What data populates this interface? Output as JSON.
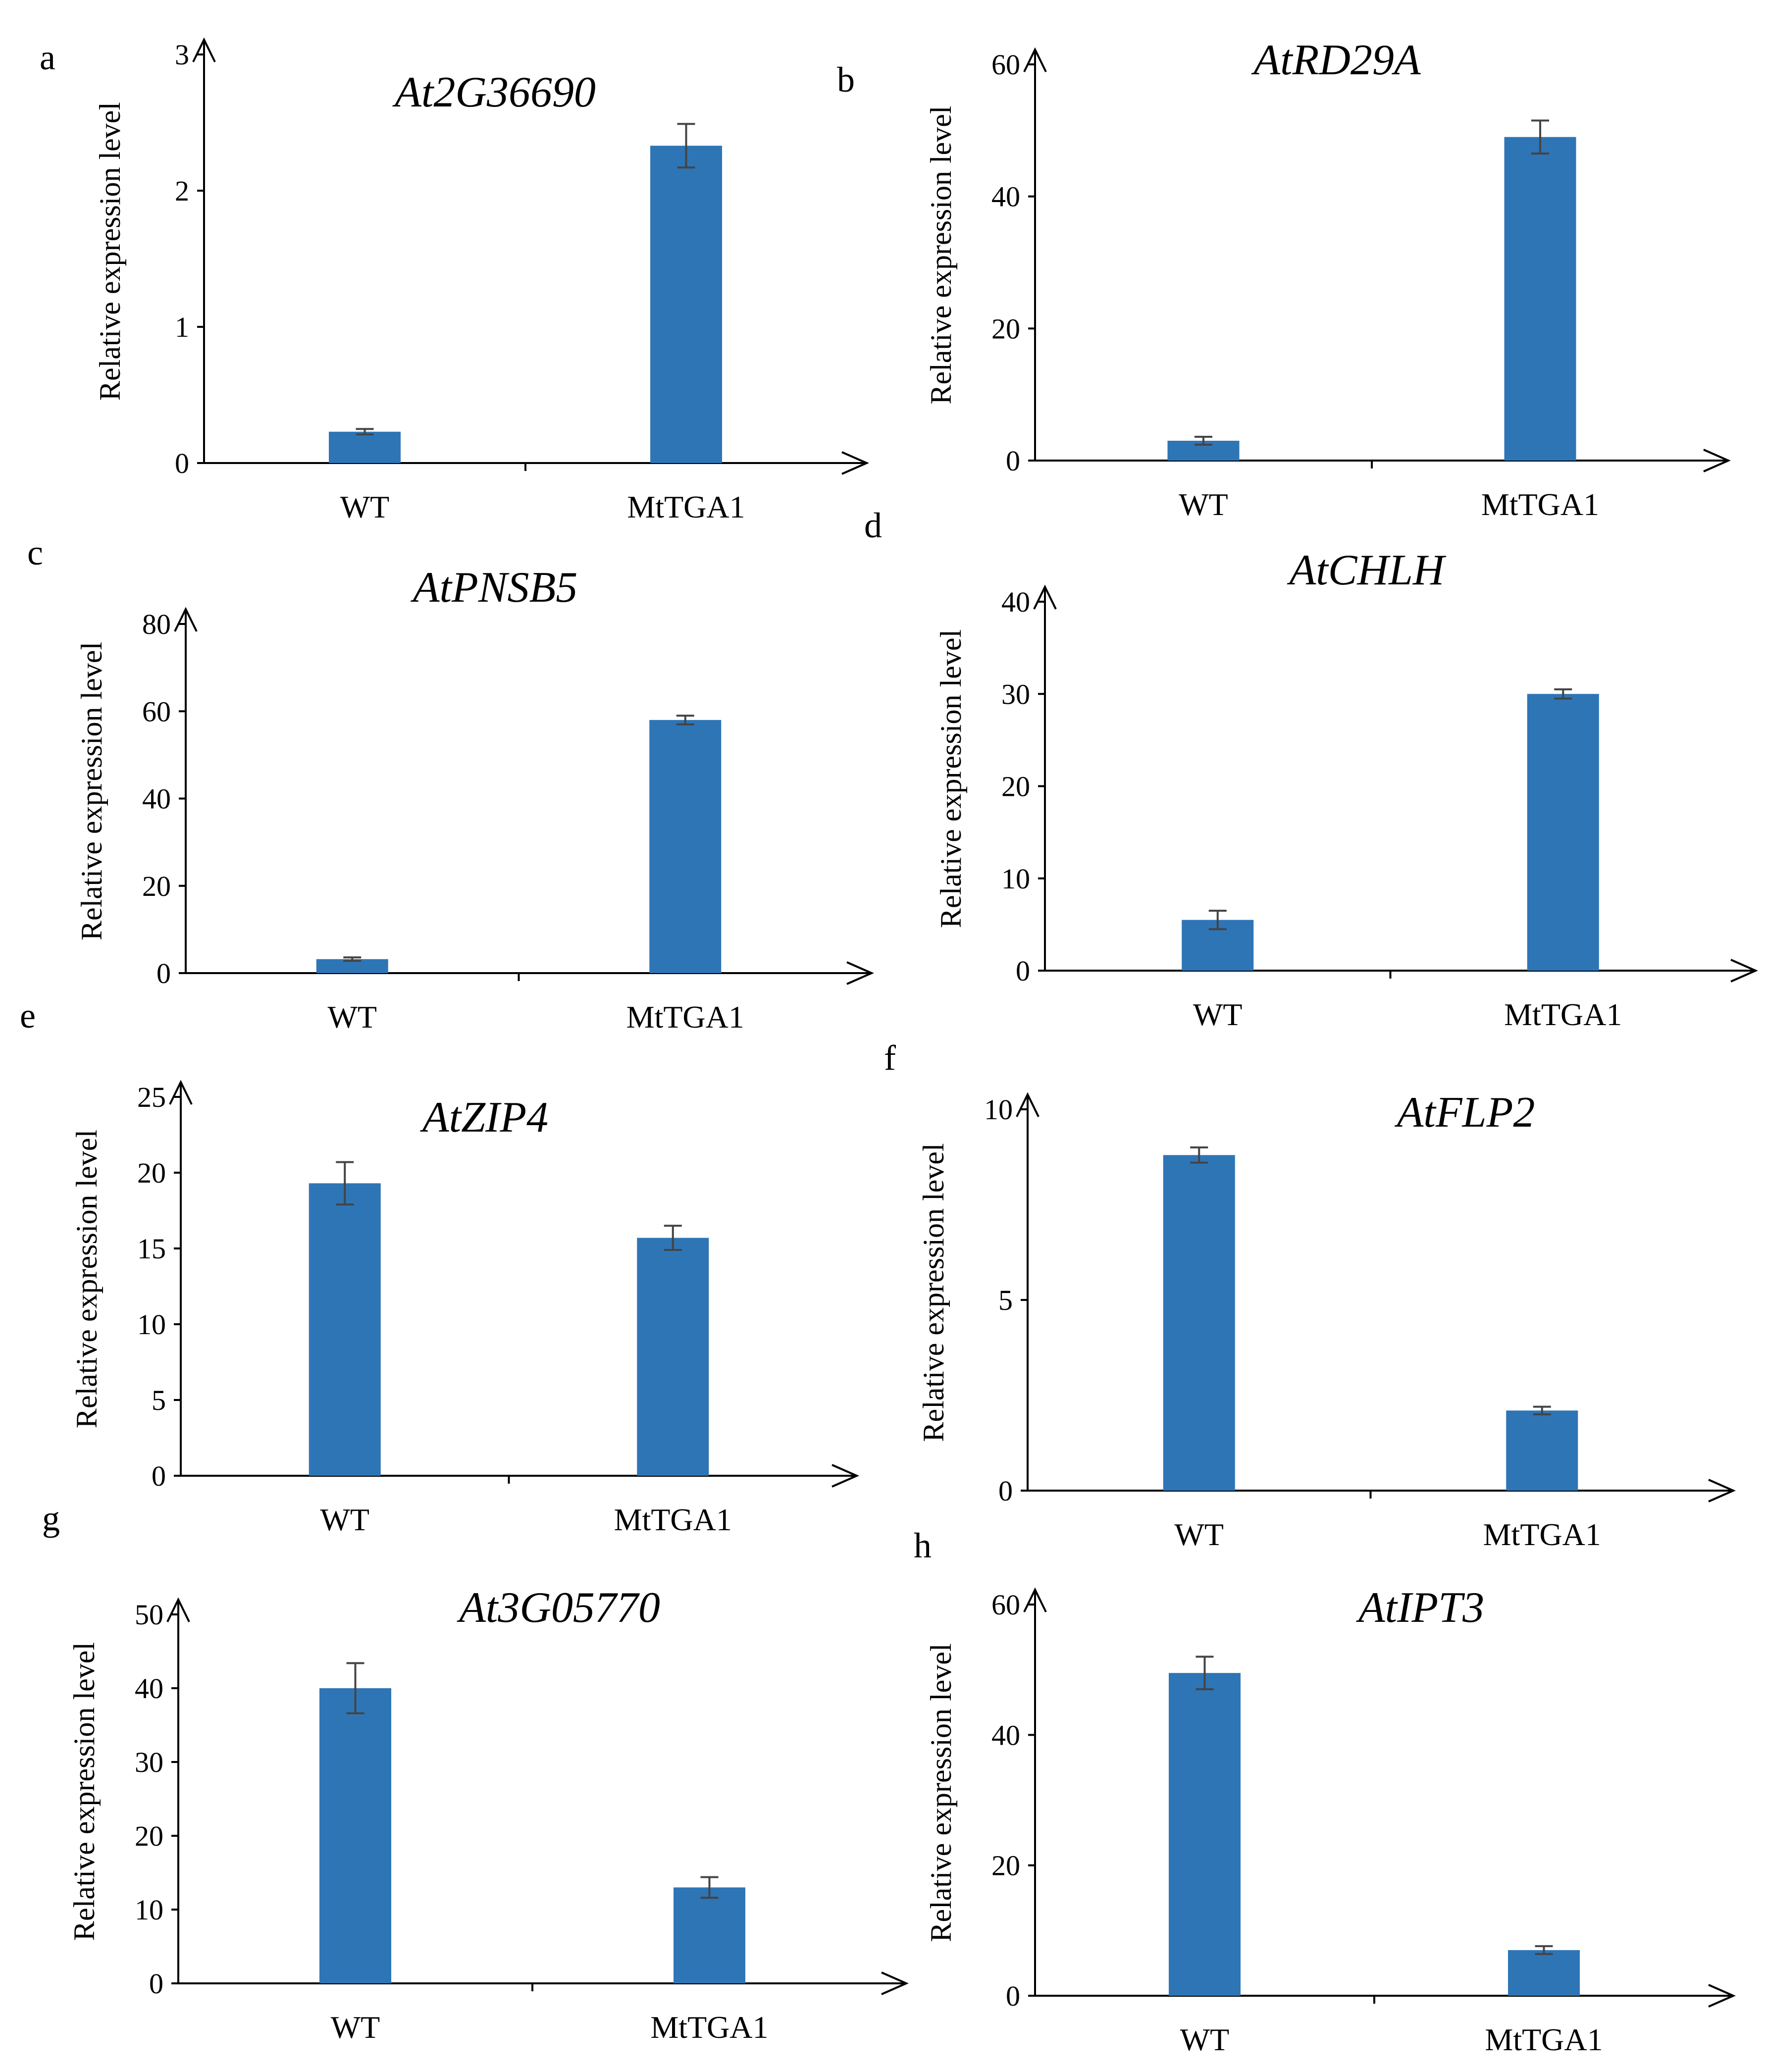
{
  "chart_data": [
    {
      "panel": "a",
      "type": "bar",
      "title": "At2G36690",
      "ylabel": "Relative expression level",
      "categories": [
        "WT",
        "MtTGA1"
      ],
      "values": [
        0.23,
        2.33
      ],
      "errors": [
        0.02,
        0.16
      ],
      "ylim": [
        0,
        3
      ],
      "yticks": [
        0,
        1,
        2,
        3
      ]
    },
    {
      "panel": "b",
      "type": "bar",
      "title": "AtRD29A",
      "ylabel": "Relative expression level",
      "categories": [
        "WT",
        "MtTGA1"
      ],
      "values": [
        3,
        49
      ],
      "errors": [
        0.6,
        2.5
      ],
      "ylim": [
        0,
        60
      ],
      "yticks": [
        0,
        20,
        40,
        60
      ]
    },
    {
      "panel": "c",
      "type": "bar",
      "title": "AtPNSB5",
      "ylabel": "Relative expression level",
      "categories": [
        "WT",
        "MtTGA1"
      ],
      "values": [
        3.2,
        58
      ],
      "errors": [
        0.4,
        1.0
      ],
      "ylim": [
        0,
        80
      ],
      "yticks": [
        0,
        20,
        40,
        60,
        80
      ]
    },
    {
      "panel": "d",
      "type": "bar",
      "title": "AtCHLH",
      "ylabel": "Relative expression level",
      "categories": [
        "WT",
        "MtTGA1"
      ],
      "values": [
        5.5,
        30
      ],
      "errors": [
        1.0,
        0.5
      ],
      "ylim": [
        0,
        40
      ],
      "yticks": [
        0,
        10,
        20,
        30,
        40
      ]
    },
    {
      "panel": "e",
      "type": "bar",
      "title": "AtZIP4",
      "ylabel": "Relative expression level",
      "categories": [
        "WT",
        "MtTGA1"
      ],
      "values": [
        19.3,
        15.7
      ],
      "errors": [
        1.4,
        0.8
      ],
      "ylim": [
        0,
        25
      ],
      "yticks": [
        0,
        5,
        10,
        15,
        20,
        25
      ]
    },
    {
      "panel": "f",
      "type": "bar",
      "title": "AtFLP2",
      "ylabel": "Relative expression level",
      "categories": [
        "WT",
        "MtTGA1"
      ],
      "values": [
        8.8,
        2.1
      ],
      "errors": [
        0.2,
        0.1
      ],
      "ylim": [
        0,
        10
      ],
      "yticks": [
        0,
        5,
        10
      ]
    },
    {
      "panel": "g",
      "type": "bar",
      "title": "At3G05770",
      "ylabel": "Relative expression level",
      "categories": [
        "WT",
        "MtTGA1"
      ],
      "values": [
        40,
        13
      ],
      "errors": [
        3.4,
        1.4
      ],
      "ylim": [
        0,
        50
      ],
      "yticks": [
        0,
        10,
        20,
        30,
        40,
        50
      ]
    },
    {
      "panel": "h",
      "type": "bar",
      "title": "AtIPT3",
      "ylabel": "Relative expression level",
      "categories": [
        "WT",
        "MtTGA1"
      ],
      "values": [
        49.5,
        7
      ],
      "errors": [
        2.5,
        0.6
      ],
      "ylim": [
        0,
        60
      ],
      "yticks": [
        0,
        20,
        40,
        60
      ]
    }
  ],
  "colors": {
    "bar": "#2e75b6",
    "axis": "#000000",
    "error_bar": "#444444"
  }
}
